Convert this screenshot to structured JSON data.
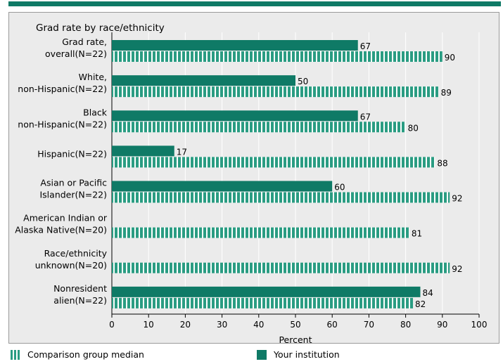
{
  "chart_data": {
    "type": "bar",
    "orientation": "horizontal",
    "title": "Grad rate by race/ethnicity",
    "xlabel": "Percent",
    "ylabel": "",
    "xlim": [
      0,
      100
    ],
    "xticks": [
      "0",
      "10",
      "20",
      "30",
      "40",
      "50",
      "60",
      "70",
      "80",
      "90",
      "100"
    ],
    "grid": true,
    "legend_position": "bottom",
    "categories": [
      [
        "Grad rate,",
        "overall(N=22)"
      ],
      [
        "White,",
        "non-Hispanic(N=22)"
      ],
      [
        "Black",
        "non-Hispanic(N=22)"
      ],
      [
        "Hispanic(N=22)"
      ],
      [
        "Asian or Pacific",
        "Islander(N=22)"
      ],
      [
        "American Indian or",
        "Alaska Native(N=20)"
      ],
      [
        "Race/ethnicity",
        "unknown(N=20)"
      ],
      [
        "Nonresident",
        "alien(N=22)"
      ]
    ],
    "series": [
      {
        "name": "Your institution",
        "values": [
          67,
          50,
          67,
          17,
          60,
          null,
          null,
          84
        ]
      },
      {
        "name": "Comparison group median",
        "values": [
          90,
          89,
          80,
          88,
          92,
          81,
          92,
          82
        ]
      }
    ],
    "colors": {
      "institution": "#0f7a66",
      "comparison": "#2a9c82",
      "stripe_gap": "#ffffff",
      "grid": "#ffffff"
    }
  },
  "legend": {
    "comparison_label": "Comparison group median",
    "institution_label": "Your institution"
  }
}
